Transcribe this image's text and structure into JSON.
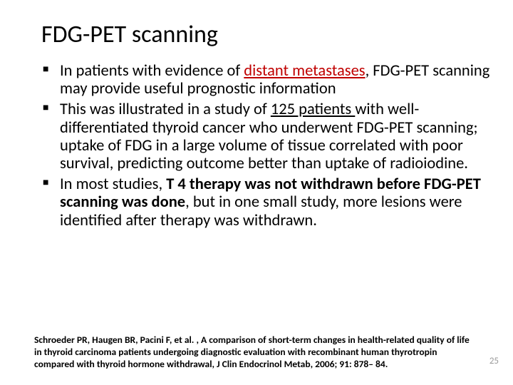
{
  "title": "FDG-PET scanning",
  "bullets": [
    {
      "pre": " In patients with evidence of ",
      "em": "distant metastases",
      "em_class": "red underline",
      "post": ", FDG-PET scanning may provide useful prognostic information"
    },
    {
      "pre": "This was illustrated in a study of ",
      "em": "125 patients ",
      "em_class": "underline",
      "post": "with well-differentiated thyroid cancer who underwent FDG-PET scanning; uptake of FDG in a large volume of tissue correlated with poor survival, predicting outcome better than uptake of radioiodine."
    },
    {
      "pre": "In most studies, ",
      "em": "T 4 therapy was not withdrawn before FDG-PET scanning was done",
      "em_class": "bold",
      "post": ", but in one small study, more lesions were identified after therapy was withdrawn."
    }
  ],
  "citation": "Schroeder PR, Haugen BR, Pacini F, et al. , A comparison of short-term changes in health-related quality of life in thyroid carcinoma patients undergoing diagnostic evaluation with recombinant human thyrotropin compared with thyroid hormone withdrawal, J Clin Endocrinol Metab, 2006; 91: 878– 84.",
  "pagenum": "25",
  "colors": {
    "emphasis": "#c00000",
    "text": "#000000",
    "pagenum": "#999999",
    "background": "#ffffff"
  },
  "typography": {
    "title_fontsize": 34,
    "body_fontsize": 22.5,
    "citation_fontsize": 13.5,
    "pagenum_fontsize": 13,
    "font_family": "Calibri"
  }
}
